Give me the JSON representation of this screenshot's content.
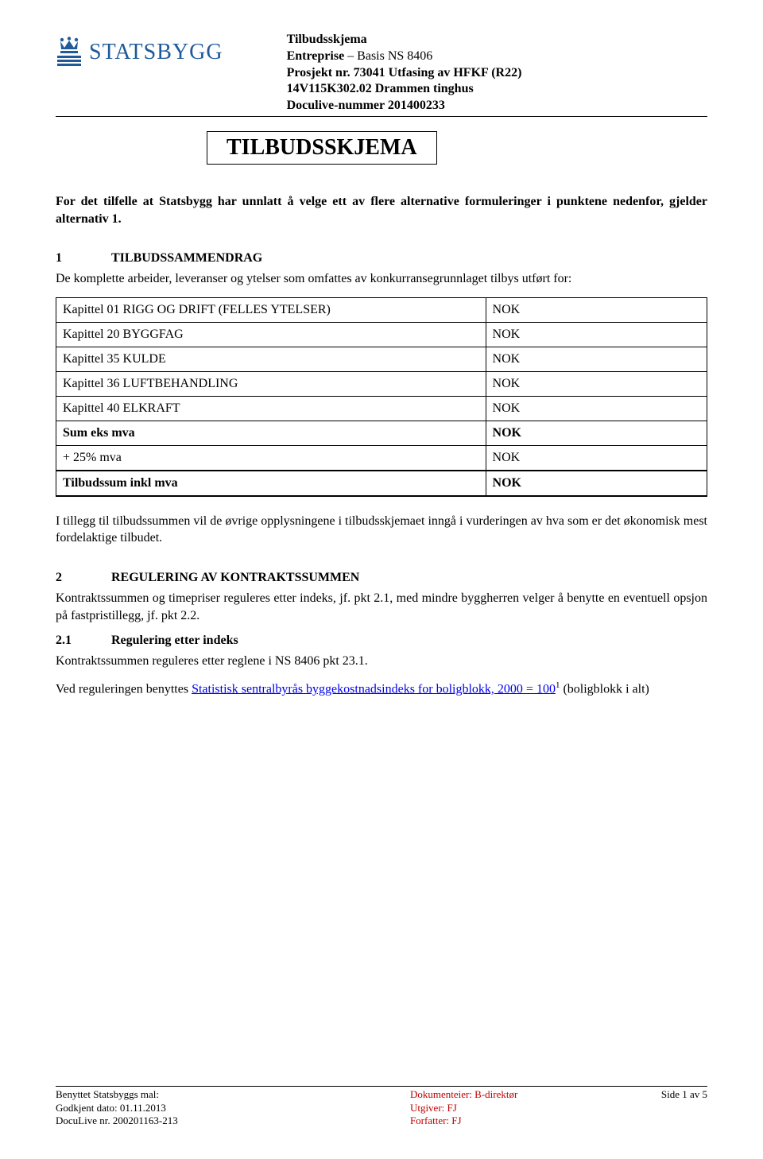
{
  "header": {
    "logo_text": "STATSBYGG",
    "line1_bold": "Tilbudsskjema",
    "line2_bold": "Entreprise",
    "line2_rest": " – Basis NS 8406",
    "line3": "Prosjekt nr. 73041 Utfasing av HFKF (R22)",
    "line4": "14V115K302.02 Drammen tinghus",
    "line5": "Doculive-nummer 201400233"
  },
  "title": "TILBUDSSKJEMA",
  "intro": "For det tilfelle at Statsbygg har unnlatt å velge ett av flere alternative formuleringer i punktene nedenfor, gjelder alternativ 1.",
  "section1": {
    "number": "1",
    "title": "TILBUDSSAMMENDRAG",
    "body": "De komplette arbeider, leveranser og ytelser som omfattes av konkurransegrunnlaget tilbys utført for:"
  },
  "table": {
    "rows": [
      {
        "label": "Kapittel 01 RIGG OG DRIFT (FELLES YTELSER)",
        "value": "NOK",
        "bold": false
      },
      {
        "label": "Kapittel 20 BYGGFAG",
        "value": "NOK",
        "bold": false
      },
      {
        "label": "Kapittel 35 KULDE",
        "value": "NOK",
        "bold": false
      },
      {
        "label": "Kapittel 36 LUFTBEHANDLING",
        "value": "NOK",
        "bold": false
      },
      {
        "label": "Kapittel 40 ELKRAFT",
        "value": "NOK",
        "bold": false
      },
      {
        "label": "Sum eks mva",
        "value": "NOK",
        "bold": true
      },
      {
        "label": "+ 25%  mva",
        "value": "NOK",
        "bold": false
      },
      {
        "label": "Tilbudssum inkl mva",
        "value": "NOK",
        "bold": true
      }
    ]
  },
  "followup": "I tillegg til tilbudssummen vil de øvrige opplysningene i tilbudsskjemaet inngå i vurderingen av hva som er det økonomisk mest fordelaktige tilbudet.",
  "section2": {
    "number": "2",
    "title": "REGULERING AV KONTRAKTSSUMMEN",
    "body": "Kontraktssummen og timepriser reguleres etter indeks, jf. pkt 2.1, med mindre byggherren velger å benytte en eventuell opsjon på fastpristillegg, jf. pkt 2.2."
  },
  "section2_1": {
    "number": "2.1",
    "title": "Regulering etter indeks",
    "body1": "Kontraktssummen reguleres etter reglene i NS 8406 pkt 23.1.",
    "body2_pre": "Ved reguleringen benyttes ",
    "body2_link": "Statistisk sentralbyrås byggekostnadsindeks for boligblokk, 2000 = 100",
    "body2_sup": "1",
    "body2_post": " (boligblokk i alt)"
  },
  "footer": {
    "left_line1": "Benyttet Statsbyggs mal:",
    "left_line2": "Godkjent dato: 01.11.2013",
    "left_line3": "DocuLive nr. 200201163-213",
    "center_line1": "Dokumenteier: B-direktør",
    "center_line2": "Utgiver: FJ",
    "center_line3": "Forfatter: FJ",
    "right": "Side 1 av 5"
  },
  "colors": {
    "logo": "#1f5a99",
    "link": "#0000ee",
    "footer_center": "#c00000"
  }
}
